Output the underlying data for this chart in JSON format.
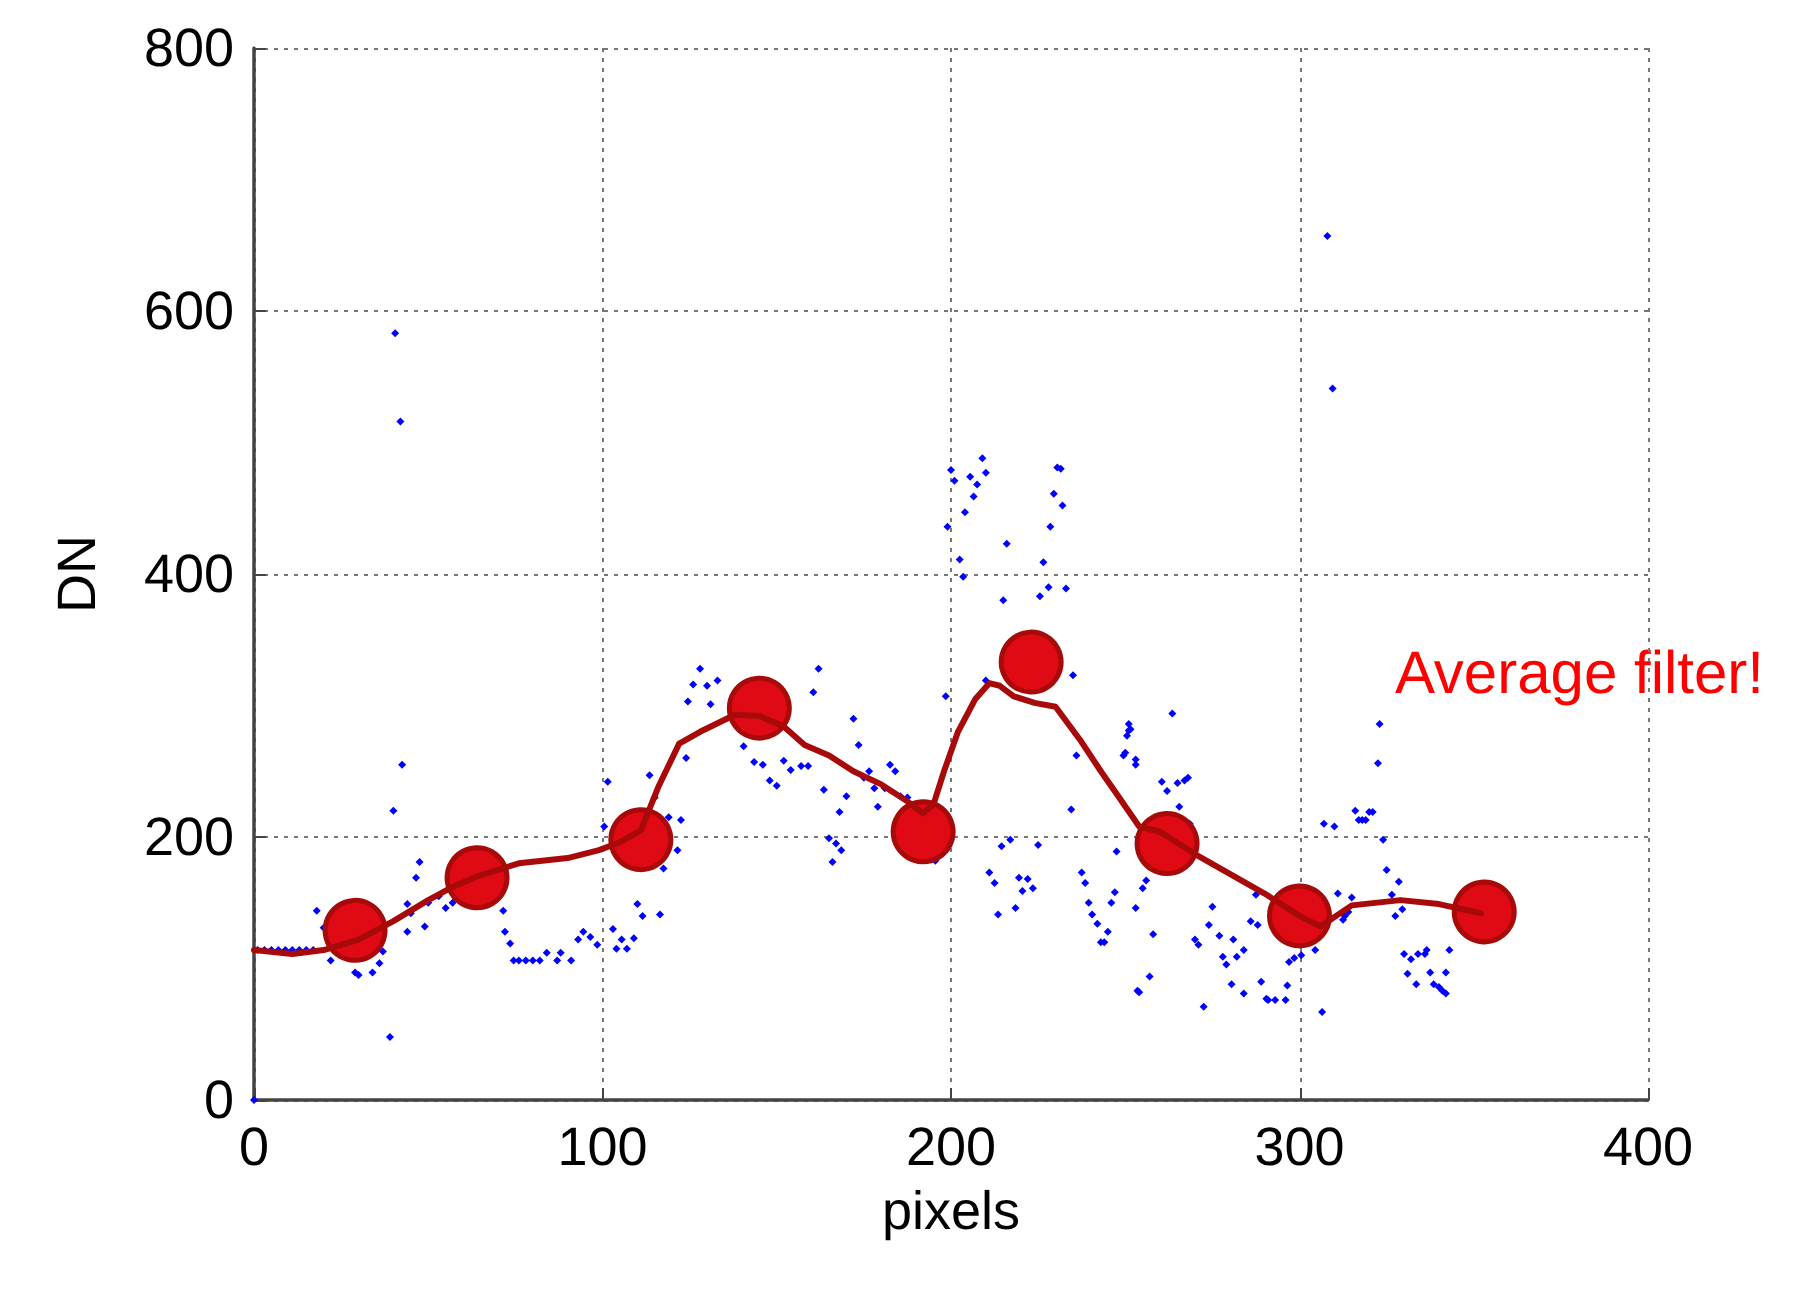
{
  "chart_data": {
    "type": "scatter",
    "xlabel": "pixels",
    "ylabel": "DN",
    "annotations": [
      "Average filter!"
    ],
    "xlim": [
      0,
      400
    ],
    "xticks": [
      0,
      100,
      200,
      300,
      400
    ],
    "ylim": [
      0,
      800
    ],
    "yticks": [
      0,
      200,
      400,
      600,
      800
    ],
    "grid": true,
    "series": [
      {
        "marker": "diamond",
        "color": "#0000ff",
        "x": [
          0,
          1,
          3,
          5,
          7,
          9,
          11,
          13,
          15,
          17,
          18,
          20,
          22,
          29,
          30,
          34,
          36,
          37,
          39,
          40,
          40.5,
          42,
          42.5,
          44,
          44,
          45,
          46.5,
          47.5,
          49,
          50,
          53,
          55,
          57,
          71.5,
          72,
          73.5,
          74.5,
          76,
          78,
          80,
          82,
          84,
          87,
          88,
          91,
          93,
          94.5,
          96.5,
          98.5,
          100.5,
          101.5,
          103,
          104,
          105.5,
          107,
          109,
          110,
          111.5,
          113.5,
          115,
          116.5,
          117.5,
          119,
          121.5,
          122.5,
          124,
          124.5,
          126,
          128,
          130,
          131,
          133,
          140.5,
          143.5,
          146,
          148,
          150,
          152,
          154,
          157,
          159,
          160.5,
          162,
          163.5,
          165,
          166,
          167,
          168,
          168.5,
          170,
          172,
          173.5,
          175,
          176.5,
          178,
          179,
          181,
          182.5,
          184,
          185.5,
          187.5,
          195.5,
          198.5,
          199,
          200,
          201,
          202.5,
          203.5,
          204,
          205.5,
          206.5,
          207.5,
          209,
          210,
          210,
          211,
          212.5,
          213.5,
          214.5,
          215,
          216,
          217,
          218.5,
          219.5,
          220.5,
          222,
          223.5,
          225,
          225.5,
          226.5,
          228,
          228.5,
          229.5,
          230.5,
          231.5,
          232,
          233,
          234.5,
          235,
          236,
          237.5,
          238.5,
          239.5,
          240.5,
          242,
          243,
          244,
          245,
          246,
          247,
          247.5,
          249.5,
          250,
          250.5,
          251,
          251,
          251.5,
          253,
          253,
          253,
          253.5,
          254,
          255,
          256,
          257,
          258,
          260.5,
          262,
          263.5,
          265,
          265.5,
          267,
          268,
          268.5,
          270,
          271,
          272.5,
          274,
          275,
          277,
          278,
          279,
          280.5,
          281,
          282,
          284,
          284,
          286,
          287.5,
          288,
          289,
          290.5,
          291,
          293,
          296,
          296.5,
          297,
          298.5,
          300.5,
          304.5,
          306.5,
          307,
          308,
          309.5,
          310,
          311,
          312.5,
          313,
          314,
          315,
          316,
          317,
          318,
          319,
          320,
          321,
          322.5,
          323,
          324,
          325,
          326.5,
          327.5,
          328.5,
          329.5,
          330,
          331,
          332,
          333.5,
          334,
          336,
          336.5,
          337.5,
          338.5,
          340,
          341,
          342,
          342,
          343
        ],
        "values": [
          0,
          114,
          114,
          114,
          114,
          114,
          114,
          114,
          114,
          114,
          144,
          131,
          106,
          97,
          95,
          97,
          104,
          113,
          48,
          220,
          583,
          516,
          255,
          128,
          149,
          142,
          169,
          181,
          132,
          150,
          155,
          146,
          150,
          144,
          128,
          119,
          106,
          106,
          106,
          106,
          106,
          112,
          106,
          112,
          106,
          122,
          128,
          124,
          118,
          208,
          242,
          130,
          115,
          122,
          115,
          123,
          149,
          140,
          247,
          230,
          141,
          176,
          215,
          190,
          213,
          260,
          303,
          316,
          328,
          315,
          301,
          319,
          269,
          257,
          255,
          243,
          239,
          258,
          251,
          254,
          254,
          310,
          328,
          236,
          199,
          181,
          195,
          219,
          190,
          231,
          290,
          270,
          245,
          250,
          237,
          223,
          237,
          255,
          250,
          231,
          230,
          182,
          307,
          436,
          479,
          471,
          411,
          398,
          447,
          474,
          459,
          468,
          488,
          477,
          319,
          173,
          165,
          141,
          193,
          380,
          423,
          198,
          146,
          169,
          159,
          168,
          161,
          194,
          383,
          409,
          390,
          436,
          461,
          481,
          480,
          452,
          389,
          221,
          323,
          262,
          173,
          165,
          150,
          141,
          134,
          120,
          120,
          128,
          150,
          158,
          189,
          262,
          264,
          277,
          286,
          281,
          282,
          255,
          259,
          146,
          83,
          82,
          161,
          167,
          94,
          126,
          242,
          235,
          294,
          241,
          223,
          243,
          245,
          210,
          122,
          118,
          71,
          133,
          147,
          125,
          109,
          103,
          88,
          122,
          109,
          114,
          81,
          136,
          156,
          133,
          90,
          77,
          76,
          76,
          76,
          87,
          105,
          108,
          110,
          114,
          67,
          210,
          657,
          541,
          208,
          157,
          137,
          140,
          143,
          154,
          220,
          213,
          213,
          213,
          219,
          219,
          256,
          286,
          198,
          175,
          156,
          140,
          166,
          145,
          111,
          96,
          107,
          88,
          111,
          111,
          114,
          97,
          88,
          86,
          83,
          81,
          97,
          114
        ]
      },
      {
        "type": "line",
        "marker": "none",
        "color": "#a80a0a",
        "x": [
          0,
          11,
          20,
          30,
          40,
          50,
          57,
          64,
          76,
          90,
          99,
          105,
          111,
          116,
          122,
          128,
          138,
          145,
          152,
          158,
          165,
          172,
          180,
          187,
          192,
          195,
          198,
          202,
          207,
          211,
          214,
          218,
          224,
          230,
          237,
          243,
          248,
          254,
          260,
          270,
          280,
          290,
          300,
          306,
          315,
          329,
          340,
          352
        ],
        "values": [
          114,
          111,
          114,
          122,
          136,
          152,
          162,
          170,
          180,
          184,
          190,
          196,
          205,
          238,
          271,
          280,
          293,
          292,
          284,
          270,
          262,
          250,
          240,
          228,
          218,
          225,
          250,
          280,
          305,
          317,
          315,
          307,
          302,
          299,
          274,
          250,
          231,
          208,
          204,
          187,
          172,
          157,
          140,
          132,
          148,
          152,
          149,
          142
        ]
      },
      {
        "marker": "circle",
        "color": "#e00a14",
        "x": [
          29,
          64,
          111,
          145,
          192,
          223,
          262,
          300,
          353
        ],
        "values": [
          129,
          169,
          198,
          298,
          204,
          333,
          195,
          140,
          143
        ]
      }
    ]
  }
}
